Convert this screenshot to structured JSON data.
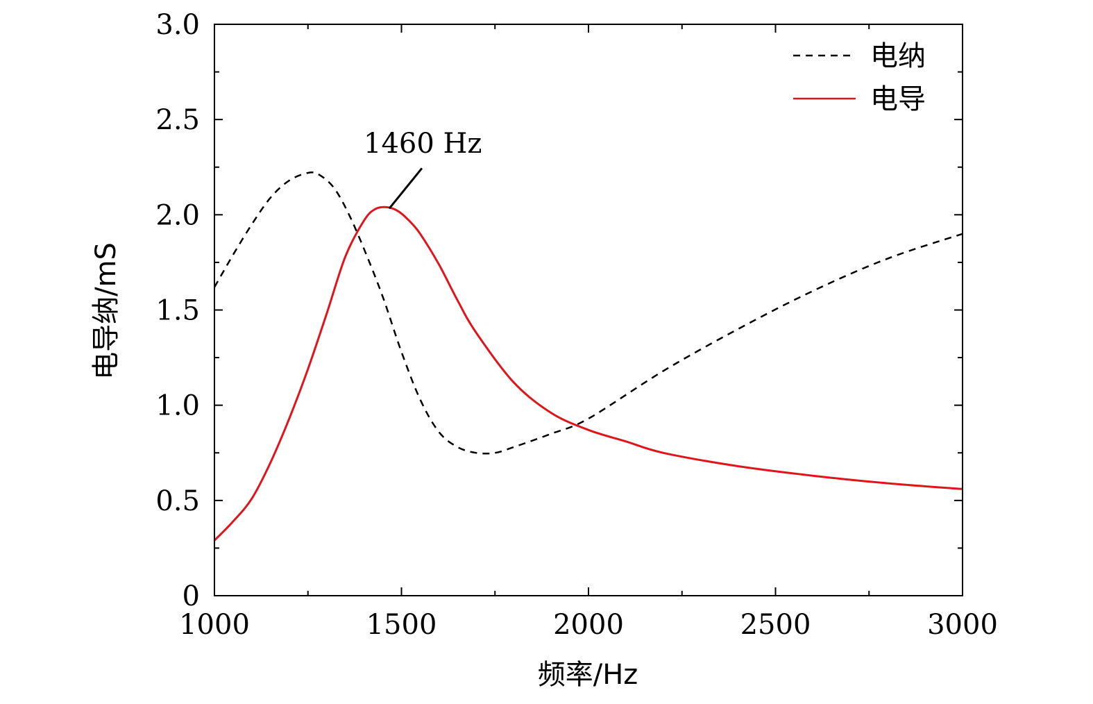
{
  "chart_data": {
    "type": "line",
    "title": "",
    "xlabel": "频率/Hz",
    "ylabel": "电导纳/mS",
    "xlim": [
      1000,
      3000
    ],
    "ylim": [
      0,
      3.0
    ],
    "grid": false,
    "legend_position": "top-right",
    "x_ticks": [
      1000,
      1500,
      2000,
      2500,
      3000
    ],
    "x_tick_labels": [
      "1000",
      "1500",
      "2000",
      "2500",
      "3000"
    ],
    "y_ticks": [
      0,
      0.5,
      1.0,
      1.5,
      2.0,
      2.5,
      3.0
    ],
    "y_tick_labels": [
      "0",
      "0.5",
      "1.0",
      "1.5",
      "2.0",
      "2.5",
      "3.0"
    ],
    "series": [
      {
        "name": "电纳",
        "style": "dashed",
        "color": "#000000",
        "x": [
          1000,
          1050,
          1100,
          1150,
          1200,
          1250,
          1280,
          1320,
          1360,
          1400,
          1450,
          1500,
          1550,
          1600,
          1650,
          1700,
          1750,
          1800,
          1900,
          2000,
          2200,
          2400,
          2600,
          2800,
          3000
        ],
        "y": [
          1.62,
          1.79,
          1.95,
          2.09,
          2.18,
          2.22,
          2.21,
          2.14,
          2.0,
          1.82,
          1.57,
          1.28,
          1.03,
          0.86,
          0.78,
          0.75,
          0.75,
          0.78,
          0.85,
          0.93,
          1.18,
          1.4,
          1.6,
          1.77,
          1.9
        ]
      },
      {
        "name": "电导",
        "style": "solid",
        "color": "#e0141b",
        "x": [
          1000,
          1050,
          1100,
          1150,
          1200,
          1250,
          1300,
          1350,
          1400,
          1430,
          1460,
          1490,
          1520,
          1550,
          1600,
          1650,
          1700,
          1800,
          1900,
          2000,
          2100,
          2200,
          2400,
          2600,
          2800,
          3000
        ],
        "y": [
          0.29,
          0.39,
          0.51,
          0.7,
          0.93,
          1.19,
          1.48,
          1.78,
          1.97,
          2.03,
          2.04,
          2.02,
          1.97,
          1.9,
          1.74,
          1.55,
          1.38,
          1.12,
          0.96,
          0.87,
          0.81,
          0.75,
          0.68,
          0.63,
          0.59,
          0.56
        ]
      }
    ],
    "annotation": {
      "text": "1460 Hz",
      "x": 1460,
      "y": 2.04
    }
  }
}
